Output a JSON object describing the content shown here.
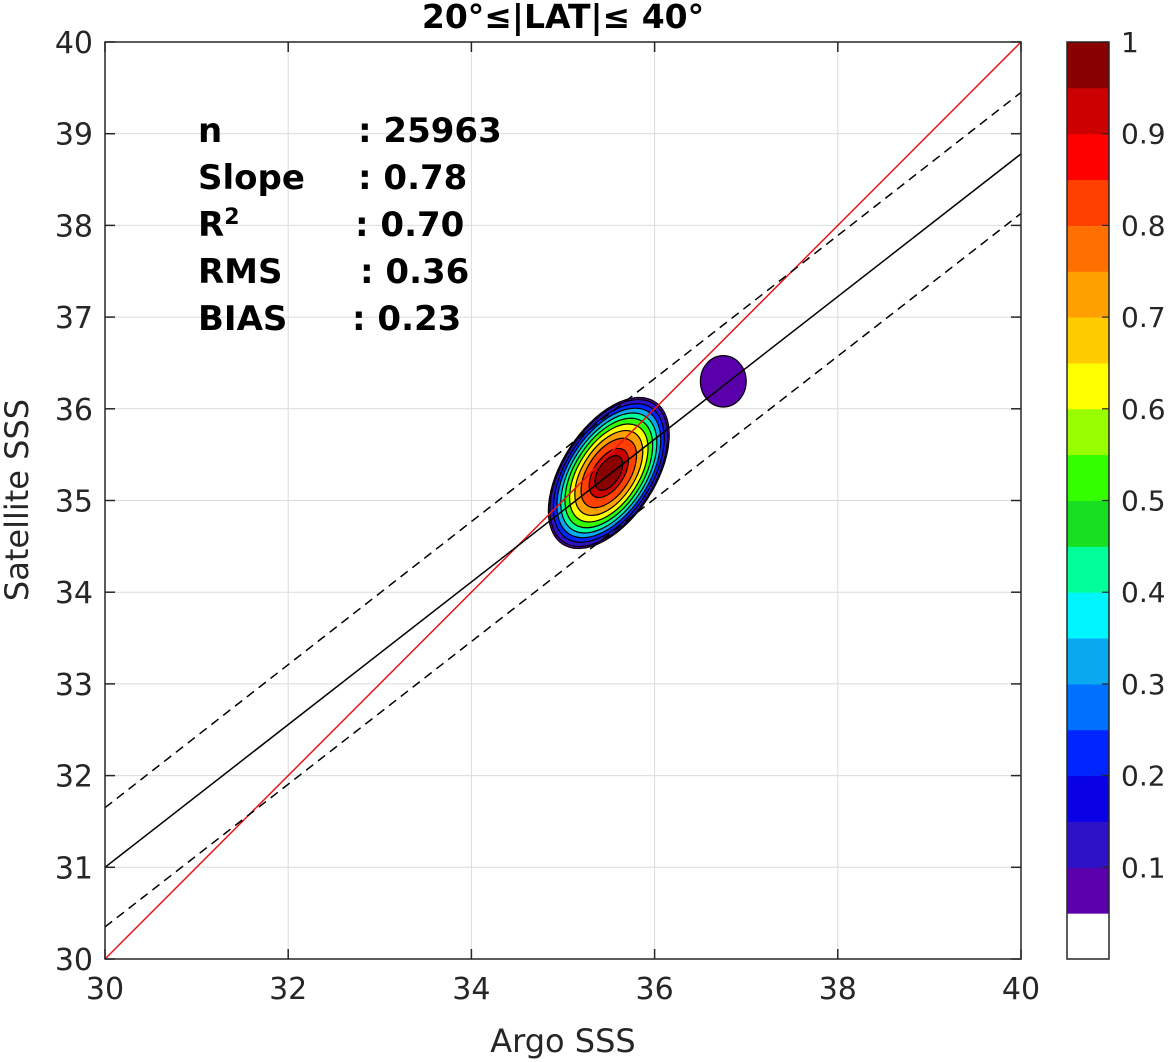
{
  "chart_data": {
    "type": "contour",
    "title": "20°≤|LAT|≤ 40°",
    "xlabel": "Argo SSS",
    "ylabel": "Satellite SSS",
    "xlim": [
      30,
      40
    ],
    "ylim": [
      30,
      40
    ],
    "xticks": [
      30,
      32,
      34,
      36,
      38,
      40
    ],
    "yticks": [
      30,
      31,
      32,
      33,
      34,
      35,
      36,
      37,
      38,
      39,
      40
    ],
    "grid": true,
    "stats": [
      {
        "label": "n",
        "sep": ":",
        "value": "25963"
      },
      {
        "label": "Slope",
        "sep": ":",
        "value": "0.78"
      },
      {
        "label": "R",
        "sup": "2",
        "sep": ":",
        "value": "0.70"
      },
      {
        "label": "RMS",
        "sep": ":",
        "value": "0.36"
      },
      {
        "label": "BIAS",
        "sep": ":",
        "value": "0.23"
      }
    ],
    "lines": [
      {
        "name": "one-to-one",
        "color": "#e8141b",
        "style": "solid",
        "x": [
          30,
          40
        ],
        "y": [
          30,
          40
        ]
      },
      {
        "name": "regression",
        "color": "#000000",
        "style": "solid",
        "x": [
          30,
          40
        ],
        "y": [
          31.0,
          38.78
        ]
      },
      {
        "name": "upper-bound",
        "color": "#000000",
        "style": "dashed",
        "x": [
          30,
          40
        ],
        "y": [
          31.65,
          39.45
        ]
      },
      {
        "name": "lower-bound",
        "color": "#000000",
        "style": "dashed",
        "x": [
          30,
          40
        ],
        "y": [
          30.35,
          38.13
        ]
      }
    ],
    "density": {
      "center": [
        35.5,
        35.3
      ],
      "rotation_deg": 57,
      "semi_major": 0.95,
      "semi_minor": 0.52,
      "levels": [
        0.05,
        0.1,
        0.2,
        0.3,
        0.4,
        0.5,
        0.6,
        0.7,
        0.8,
        0.9,
        0.95
      ],
      "secondary_blob": {
        "center": [
          36.75,
          36.3
        ],
        "radius_x": 0.25,
        "radius_y": 0.28,
        "level": 0.05
      }
    },
    "colorbar": {
      "min": 0,
      "max": 1,
      "tick_values": [
        0.1,
        0.2,
        0.3,
        0.4,
        0.5,
        0.6,
        0.7,
        0.8,
        0.9,
        1
      ],
      "tick_labels": [
        "0.1",
        "0.2",
        "0.3",
        "0.4",
        "0.5",
        "0.6",
        "0.7",
        "0.8",
        "0.9",
        "1"
      ],
      "colors": [
        "#ffffff",
        "#5a00aa",
        "#2e12c8",
        "#0a00e6",
        "#0025ff",
        "#0070ff",
        "#0aaaf0",
        "#00f6ff",
        "#00ff9a",
        "#18e020",
        "#33ff00",
        "#99ff00",
        "#ffff00",
        "#ffcc00",
        "#ffa000",
        "#ff7000",
        "#ff4000",
        "#ff0000",
        "#cc0000",
        "#880000"
      ]
    }
  }
}
